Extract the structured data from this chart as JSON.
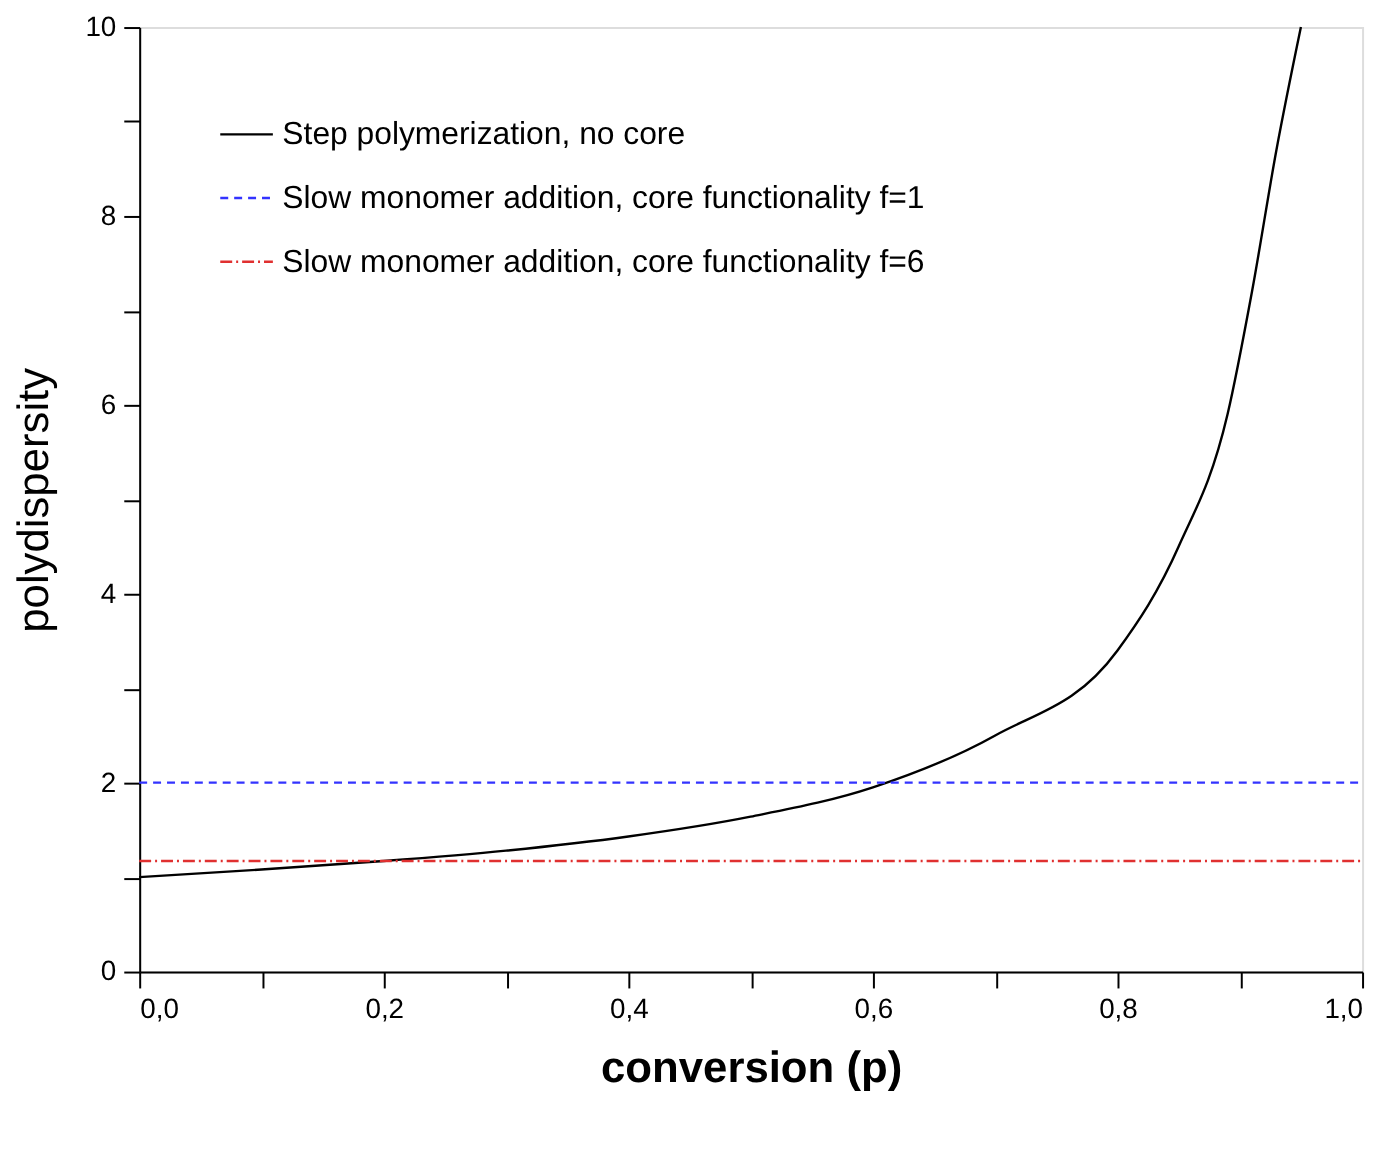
{
  "chart_data": {
    "type": "line",
    "xlabel": "conversion (p)",
    "ylabel": "polydispersity",
    "xlim": [
      0,
      1
    ],
    "ylim": [
      0,
      10
    ],
    "xticks": [
      {
        "value": 0,
        "label": "0,0"
      },
      {
        "value": 0.1,
        "label": null
      },
      {
        "value": 0.2,
        "label": "0,2"
      },
      {
        "value": 0.3,
        "label": null
      },
      {
        "value": 0.4,
        "label": "0,4"
      },
      {
        "value": 0.5,
        "label": null
      },
      {
        "value": 0.6,
        "label": "0,6"
      },
      {
        "value": 0.7,
        "label": null
      },
      {
        "value": 0.8,
        "label": "0,8"
      },
      {
        "value": 0.9,
        "label": null
      },
      {
        "value": 1,
        "label": "1,0"
      }
    ],
    "yticks": [
      0,
      {
        "value": 1,
        "label": null
      },
      2,
      {
        "value": 3,
        "label": null
      },
      4,
      {
        "value": 5,
        "label": null
      },
      6,
      {
        "value": 7,
        "label": null
      },
      8,
      {
        "value": 9,
        "label": null
      },
      10
    ],
    "legend": "top left",
    "grid": false,
    "marker": "none",
    "series": [
      {
        "name": "Step polymerization, no core",
        "color": "#000000",
        "line_style": "solid",
        "x": [
          0,
          0.1,
          0.2,
          0.3,
          0.4,
          0.5,
          0.6,
          0.7,
          0.8,
          0.85,
          0.89,
          0.91,
          0.93,
          0.95
        ],
        "values": [
          1,
          1.08,
          1.17,
          1.28,
          1.43,
          1.64,
          1.95,
          2.5,
          3.4,
          4.5,
          5.9,
          7.2,
          8.7,
          10
        ]
      },
      {
        "name": "Slow monomer addition, core functionality f=1",
        "color": "#3333ff",
        "line_style": "dashed",
        "x": [
          0,
          1
        ],
        "values": [
          2,
          2
        ]
      },
      {
        "name": "Slow monomer addition, core functionality f=6",
        "color": "#e03030",
        "line_style": "dashdot",
        "x": [
          0,
          1
        ],
        "values": [
          1.17,
          1.17
        ]
      }
    ]
  }
}
